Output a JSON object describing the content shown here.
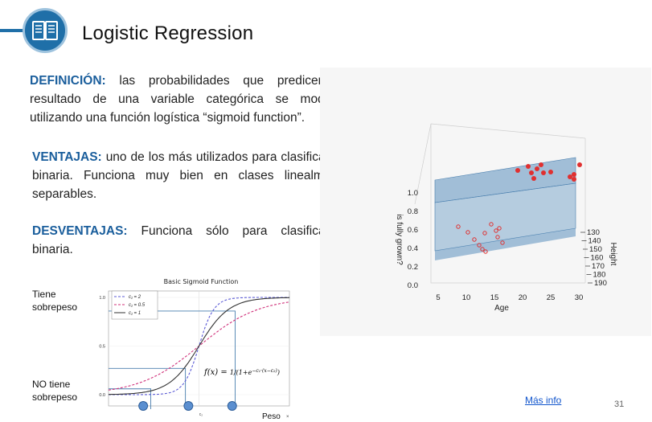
{
  "slide": {
    "title": "Logistic Regression",
    "page_number": "31",
    "more_info": "Más info",
    "accent_color": "#1f6fa8",
    "icon": "book-icon"
  },
  "definition": {
    "label": "DEFINICIÓN:",
    "text": " las probabilidades que predicen el resultado de una variable categórica se modelan utilizando una función logística “sigmoid function”."
  },
  "advantages": {
    "label": "VENTAJAS:",
    "text": " uno de los más utilizados para clasificación binaria. Funciona muy bien en clases linealmente separables."
  },
  "disadvantages": {
    "label": "DESVENTAJAS:",
    "text": " Funciona sólo para clasificación binaria."
  },
  "labels": {
    "overweight": "Tiene sobrepeso",
    "not_overweight": "NO tiene sobrepeso"
  },
  "chart_data": [
    {
      "type": "line",
      "title": "Basic Sigmoid Function",
      "xlabel": "Peso",
      "ylabel": "",
      "ylim": [
        0.0,
        1.0
      ],
      "yticks": [
        "0.0",
        "0.5",
        "1.0"
      ],
      "xtick_label": "c₂",
      "formula": "f(x) = 1 / (1 + e^(−c₁·(x−c₂)))",
      "legend_position": "top-left",
      "series": [
        {
          "name": "c₁ = 2",
          "color": "#5b5bd6",
          "dash": true,
          "c1": 2
        },
        {
          "name": "c₁ = 0.5",
          "color": "#d0307a",
          "dash": true,
          "c1": 0.5
        },
        {
          "name": "c₁ = 1",
          "color": "#333333",
          "dash": false,
          "c1": 1
        }
      ],
      "c2": 0,
      "x_range": [
        -6,
        6
      ]
    },
    {
      "type": "scatter",
      "xlabel": "Age",
      "ylabel": "is fully grown?",
      "zlabel": "Height",
      "xticks": [
        "5",
        "10",
        "15",
        "20",
        "25",
        "30"
      ],
      "yticks": [
        "0.0",
        "0.2",
        "0.4",
        "0.6",
        "0.8",
        "1.0"
      ],
      "zticks": [
        "130",
        "140",
        "150",
        "160",
        "170",
        "180",
        "190"
      ],
      "point_color": "#e03030"
    }
  ]
}
